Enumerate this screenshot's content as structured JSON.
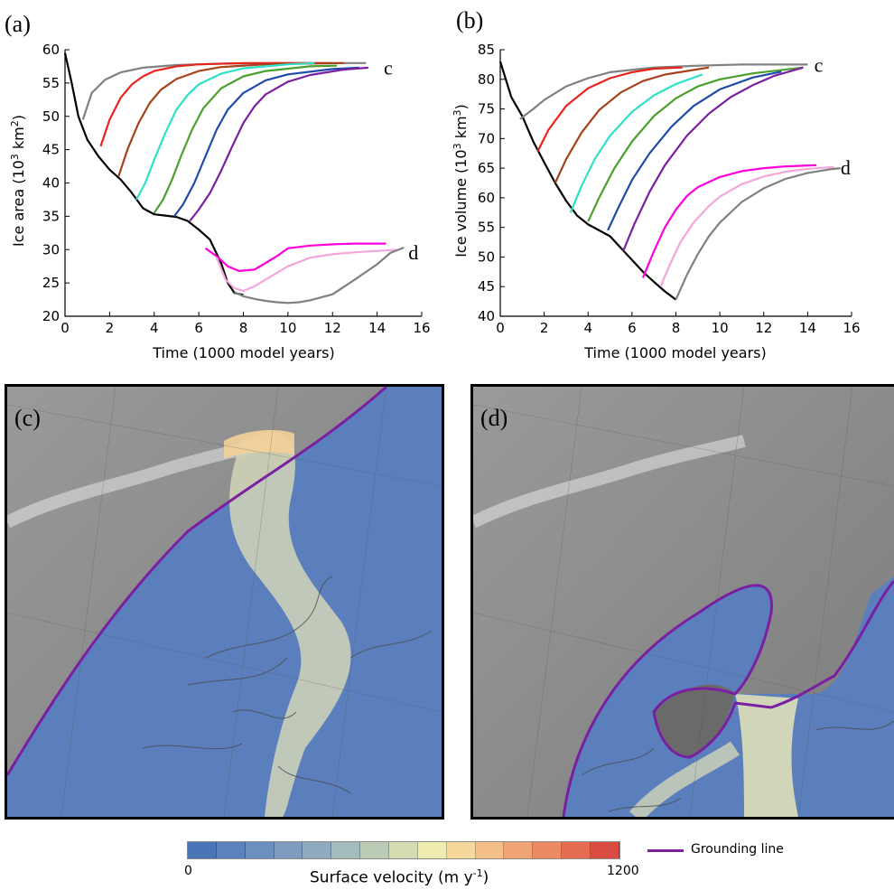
{
  "panel_a_tag": "(a)",
  "panel_b_tag": "(b)",
  "panel_c_tag": "(c)",
  "panel_d_tag": "(d)",
  "legend": {
    "colorbar_min": "0",
    "colorbar_max": "1200",
    "colorbar_title_main": "Surface velocity (m y",
    "colorbar_title_sup": "-1",
    "colorbar_title_end": ")",
    "colorbar_colors": [
      "#4a76b8",
      "#5b82bb",
      "#6b8fbf",
      "#7d9cc0",
      "#8eaabf",
      "#a3bdbd",
      "#bccbb6",
      "#d6dbb2",
      "#efeeb0",
      "#f6d79c",
      "#f5bf88",
      "#f2a574",
      "#ec8a62",
      "#e46c51",
      "#d94c42"
    ],
    "grounding_line_label": "Grounding line",
    "grounding_line_color": "#7a1fa2"
  },
  "chart_data": [
    {
      "type": "line",
      "panel": "a",
      "ylabel_main": "Ice area (10",
      "ylabel_sup": "3",
      "ylabel_mid": " km",
      "ylabel_sup2": "2",
      "ylabel_end": ")",
      "xlabel": "Time (1000 model years)",
      "xlim": [
        0,
        16
      ],
      "ylim": [
        20,
        60
      ],
      "xticks": [
        0,
        2,
        4,
        6,
        8,
        10,
        12,
        14,
        16
      ],
      "yticks": [
        20,
        25,
        30,
        35,
        40,
        45,
        50,
        55,
        60
      ],
      "annotations": [
        {
          "text": "c",
          "x": 14.3,
          "y": 57.2
        },
        {
          "text": "d",
          "x": 15.4,
          "y": 29.5
        }
      ],
      "series": [
        {
          "color": "#000000",
          "x": [
            0,
            0.3,
            0.6,
            1,
            1.5,
            2,
            2.5,
            3,
            3.5,
            4,
            4.5,
            5,
            5.5,
            6,
            6.5,
            7,
            7.3,
            7.6,
            8
          ],
          "y": [
            59.5,
            55,
            50,
            46.5,
            44,
            42,
            40.5,
            38.5,
            36.2,
            35.3,
            35.1,
            34.9,
            34.3,
            33,
            31.5,
            28,
            25,
            23.5,
            23.2
          ]
        },
        {
          "color": "#808080",
          "x": [
            0.8,
            1.2,
            1.8,
            2.5,
            3.5,
            5,
            7,
            9,
            11,
            13.5
          ],
          "y": [
            49.5,
            53.5,
            55.5,
            56.6,
            57.3,
            57.7,
            57.9,
            58,
            58,
            58
          ]
        },
        {
          "color": "#e8231b",
          "x": [
            1.6,
            2,
            2.5,
            3,
            3.5,
            4,
            5,
            6,
            8,
            10,
            12
          ],
          "y": [
            45.5,
            49.5,
            52.8,
            54.8,
            56,
            56.8,
            57.5,
            57.8,
            58,
            58,
            58
          ]
        },
        {
          "color": "#a6411a",
          "x": [
            2.4,
            2.8,
            3.3,
            3.8,
            4.3,
            5,
            6,
            7,
            9,
            12.5
          ],
          "y": [
            41,
            45,
            49,
            52,
            54,
            55.6,
            56.8,
            57.4,
            57.8,
            58
          ]
        },
        {
          "color": "#2ee0c8",
          "x": [
            3.2,
            3.6,
            4,
            4.5,
            5,
            5.5,
            6,
            7,
            8,
            10,
            11.2
          ],
          "y": [
            37.5,
            40,
            43.5,
            47.5,
            51,
            53.2,
            54.8,
            56.4,
            57.2,
            57.8,
            58
          ]
        },
        {
          "color": "#4aa02c",
          "x": [
            4,
            4.4,
            4.8,
            5.2,
            5.7,
            6.2,
            7,
            8,
            9,
            11,
            12.2
          ],
          "y": [
            35.5,
            37.5,
            40.5,
            44,
            48,
            51.2,
            54.2,
            56,
            56.8,
            57.5,
            57.6
          ]
        },
        {
          "color": "#1f4aa8",
          "x": [
            4.9,
            5.3,
            5.8,
            6.3,
            6.8,
            7.3,
            8,
            9,
            10,
            12,
            13.2
          ],
          "y": [
            35,
            36.8,
            40,
            44,
            48,
            51,
            53.5,
            55.4,
            56.3,
            57.1,
            57.3
          ]
        },
        {
          "color": "#7b1fa2",
          "x": [
            5.6,
            6,
            6.5,
            7,
            7.5,
            8,
            8.5,
            9,
            10,
            11,
            12.5,
            13.6
          ],
          "y": [
            34.3,
            36,
            38.5,
            41.8,
            45.5,
            49,
            51.5,
            53.3,
            55.2,
            56.2,
            57,
            57.3
          ]
        },
        {
          "color": "#ff00dc",
          "x": [
            6.3,
            6.8,
            7.3,
            7.8,
            8.5,
            9,
            9.5,
            10,
            11,
            12,
            13,
            14.4
          ],
          "y": [
            30.2,
            29,
            27.5,
            26.8,
            27,
            28,
            29,
            30.2,
            30.6,
            30.8,
            30.9,
            30.9
          ]
        },
        {
          "color": "#f4a6dc",
          "x": [
            6.8,
            7.2,
            7.6,
            8,
            8.5,
            9,
            10,
            11,
            12,
            13,
            14,
            15
          ],
          "y": [
            28.8,
            25.5,
            24.2,
            23.8,
            24.5,
            25.5,
            27.5,
            28.8,
            29.3,
            29.6,
            29.8,
            30
          ]
        },
        {
          "color": "#808080",
          "x": [
            7.6,
            8,
            8.5,
            9,
            9.5,
            10,
            10.5,
            11,
            12,
            13,
            14,
            14.6,
            15.2
          ],
          "y": [
            23.6,
            23,
            22.6,
            22.3,
            22.1,
            22,
            22.1,
            22.4,
            23.3,
            25.5,
            27.8,
            29.5,
            30.3
          ]
        }
      ]
    },
    {
      "type": "line",
      "panel": "b",
      "ylabel_main": "Ice volume (10",
      "ylabel_sup": "3",
      "ylabel_mid": " km",
      "ylabel_sup2": "3",
      "ylabel_end": ")",
      "xlabel": "Time (1000 model years)",
      "xlim": [
        0,
        16
      ],
      "ylim": [
        40,
        85
      ],
      "xticks": [
        0,
        2,
        4,
        6,
        8,
        10,
        12,
        14,
        16
      ],
      "yticks": [
        40,
        45,
        50,
        55,
        60,
        65,
        70,
        75,
        80,
        85
      ],
      "annotations": [
        {
          "text": "c",
          "x": 14.3,
          "y": 82.3
        },
        {
          "text": "d",
          "x": 15.5,
          "y": 65
        }
      ],
      "series": [
        {
          "color": "#000000",
          "x": [
            0,
            0.5,
            1,
            1.5,
            2,
            2.5,
            3,
            3.5,
            4,
            4.5,
            5,
            5.5,
            6,
            6.5,
            7,
            7.5,
            8
          ],
          "y": [
            83,
            77,
            73.8,
            69.5,
            66,
            62.5,
            59.5,
            57,
            55.5,
            54.5,
            53.5,
            51.5,
            49.5,
            47.5,
            45.8,
            44.2,
            42.8
          ]
        },
        {
          "color": "#808080",
          "x": [
            0.9,
            1.5,
            2,
            3,
            4,
            5,
            7,
            9,
            11,
            14
          ],
          "y": [
            73.3,
            75,
            76.5,
            78.8,
            80.2,
            81.2,
            82,
            82.3,
            82.5,
            82.5
          ]
        },
        {
          "color": "#e8231b",
          "x": [
            1.7,
            2.2,
            3,
            4,
            5,
            6,
            7,
            8.3
          ],
          "y": [
            67.8,
            71.5,
            75.5,
            78.5,
            80.2,
            81.2,
            81.8,
            82
          ]
        },
        {
          "color": "#a6411a",
          "x": [
            2.5,
            3,
            3.7,
            4.5,
            5.5,
            6.5,
            7.5,
            9.5
          ],
          "y": [
            62.5,
            66.5,
            71,
            74.8,
            77.8,
            79.7,
            80.8,
            82
          ]
        },
        {
          "color": "#2ee0c8",
          "x": [
            3.2,
            3.7,
            4.3,
            5,
            6,
            7,
            8,
            9.2
          ],
          "y": [
            57.5,
            62,
            66.5,
            70.5,
            74.5,
            77.3,
            79.2,
            80.8
          ]
        },
        {
          "color": "#4aa02c",
          "x": [
            4,
            4.5,
            5.2,
            6,
            7,
            8,
            9,
            10,
            11.5,
            13.8
          ],
          "y": [
            56,
            60,
            65,
            69.5,
            73.8,
            76.8,
            78.8,
            80,
            81,
            82
          ]
        },
        {
          "color": "#1f4aa8",
          "x": [
            4.9,
            5.4,
            6,
            6.8,
            7.8,
            8.8,
            10,
            11.5,
            12.8
          ],
          "y": [
            54.5,
            58.5,
            63,
            67.5,
            72,
            75.5,
            78.3,
            80.3,
            81.3
          ]
        },
        {
          "color": "#7b1fa2",
          "x": [
            5.6,
            6.1,
            6.8,
            7.5,
            8.5,
            9.5,
            10.5,
            11.5,
            12.5,
            13.8
          ],
          "y": [
            51,
            55.5,
            61,
            65.5,
            70.5,
            74.2,
            77,
            79,
            80.6,
            82
          ]
        },
        {
          "color": "#ff00dc",
          "x": [
            6.5,
            7,
            7.5,
            8,
            8.5,
            9,
            10,
            11,
            12,
            13,
            14.4
          ],
          "y": [
            46.5,
            51,
            55,
            58,
            60.3,
            61.8,
            63.5,
            64.5,
            65,
            65.3,
            65.5
          ]
        },
        {
          "color": "#f4a6dc",
          "x": [
            7.3,
            7.7,
            8.2,
            8.8,
            9.5,
            10,
            11,
            12,
            13,
            14,
            15.2
          ],
          "y": [
            45,
            48.5,
            52.5,
            55.8,
            58.6,
            60.2,
            62.3,
            63.6,
            64.4,
            64.9,
            65.2
          ]
        },
        {
          "color": "#808080",
          "x": [
            8,
            8.5,
            9,
            9.5,
            10,
            11,
            12,
            13,
            14,
            15,
            15.5
          ],
          "y": [
            42.8,
            47,
            50.5,
            53.5,
            55.8,
            59.3,
            61.6,
            63.2,
            64.2,
            64.8,
            65
          ]
        }
      ]
    }
  ]
}
